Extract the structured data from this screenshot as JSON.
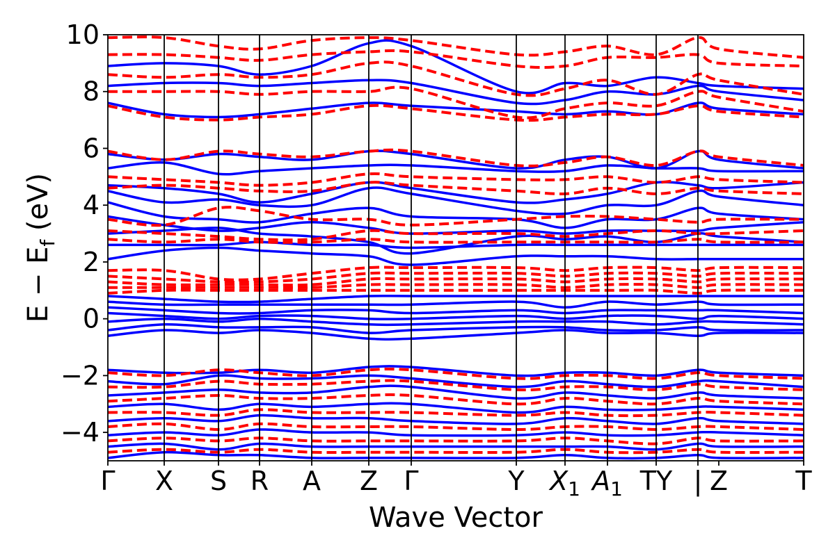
{
  "chart_data": {
    "type": "line",
    "xlabel": "Wave Vector",
    "ylabel": "E − E",
    "ylabel_subscript": "f",
    "ylabel_unit": " (eV)",
    "ylim": [
      -5,
      10
    ],
    "xlim": [
      0,
      1
    ],
    "yticks": [
      -4,
      -2,
      0,
      2,
      4,
      6,
      8,
      10
    ],
    "ytick_labels": [
      "−4",
      "−2",
      "0",
      "2",
      "4",
      "6",
      "8",
      "10"
    ],
    "kpoints": [
      {
        "label": "Γ",
        "x": 0.0,
        "vline": false
      },
      {
        "label": "X",
        "x": 0.081,
        "vline": true
      },
      {
        "label": "S",
        "x": 0.159,
        "vline": true
      },
      {
        "label": "R",
        "x": 0.218,
        "vline": true
      },
      {
        "label": "A",
        "x": 0.293,
        "vline": true
      },
      {
        "label": "Z",
        "x": 0.375,
        "vline": true
      },
      {
        "label": "Γ",
        "x": 0.436,
        "vline": true
      },
      {
        "label": "Y",
        "x": 0.587,
        "vline": true
      },
      {
        "label": "X",
        "label_sub": "1",
        "x": 0.657,
        "vline": true
      },
      {
        "label": "A",
        "label_sub": "1",
        "x": 0.718,
        "vline": true
      },
      {
        "label": "TY",
        "x": 0.788,
        "vline": true
      },
      {
        "label": "|",
        "x": 0.848,
        "vline": true
      },
      {
        "label": "Z",
        "x": 0.878,
        "vline": false
      },
      {
        "label": "T",
        "x": 1.0,
        "vline": false
      }
    ],
    "series": [
      {
        "color": "#0000ff",
        "style": "solid",
        "bands": [
          [
            8.9,
            9.0,
            8.9,
            8.6,
            8.9,
            9.7,
            9.6,
            8.0,
            8.3,
            8.2,
            8.5,
            8.3,
            8.2,
            8.1
          ],
          [
            8.2,
            8.3,
            8.3,
            8.2,
            8.3,
            8.4,
            8.3,
            7.6,
            7.7,
            8.0,
            7.9,
            8.2,
            8.0,
            7.7
          ],
          [
            7.6,
            7.2,
            7.1,
            7.2,
            7.4,
            7.6,
            7.5,
            7.3,
            7.2,
            7.3,
            7.2,
            7.6,
            7.4,
            7.2
          ],
          [
            5.8,
            5.6,
            5.8,
            5.7,
            5.6,
            5.9,
            5.8,
            5.3,
            5.6,
            5.7,
            5.3,
            5.9,
            5.6,
            5.3
          ],
          [
            5.3,
            5.5,
            5.1,
            5.2,
            5.3,
            5.4,
            5.4,
            5.2,
            5.2,
            5.4,
            5.3,
            5.3,
            5.2,
            5.2
          ],
          [
            4.7,
            4.6,
            4.4,
            4.1,
            4.4,
            4.8,
            4.6,
            4.1,
            4.2,
            4.4,
            4.8,
            4.7,
            4.6,
            4.8
          ],
          [
            4.5,
            4.1,
            4.2,
            4.0,
            4.0,
            4.6,
            4.4,
            3.8,
            3.7,
            4.0,
            4.0,
            4.5,
            4.3,
            4.0
          ],
          [
            4.1,
            3.6,
            3.5,
            3.4,
            3.7,
            3.9,
            3.6,
            3.5,
            3.2,
            3.5,
            3.5,
            3.9,
            3.7,
            3.5
          ],
          [
            3.6,
            3.3,
            3.1,
            3.2,
            3.4,
            3.2,
            3.0,
            3.1,
            3.0,
            3.1,
            3.1,
            3.1,
            3.2,
            3.4
          ],
          [
            3.0,
            3.1,
            3.2,
            3.0,
            2.9,
            2.7,
            2.3,
            2.9,
            2.8,
            2.9,
            2.7,
            3.0,
            2.9,
            2.7
          ],
          [
            2.6,
            2.6,
            2.6,
            2.7,
            2.6,
            2.6,
            2.5,
            2.6,
            2.6,
            2.6,
            2.6,
            2.6,
            2.6,
            2.6
          ],
          [
            2.1,
            2.4,
            2.5,
            2.4,
            2.3,
            2.2,
            1.9,
            2.2,
            2.2,
            2.2,
            2.1,
            2.1,
            2.1,
            2.1
          ],
          [
            0.8,
            0.7,
            0.6,
            0.6,
            0.7,
            0.8,
            0.8,
            0.8,
            0.8,
            0.8,
            0.8,
            0.8,
            0.8,
            0.8
          ],
          [
            0.6,
            0.5,
            0.5,
            0.5,
            0.5,
            0.5,
            0.5,
            0.6,
            0.4,
            0.6,
            0.5,
            0.6,
            0.5,
            0.5
          ],
          [
            0.4,
            0.3,
            0.2,
            0.2,
            0.3,
            0.3,
            0.2,
            0.3,
            0.2,
            0.3,
            0.3,
            0.3,
            0.3,
            0.2
          ],
          [
            0.2,
            0.1,
            0.0,
            0.1,
            0.1,
            0.0,
            0.0,
            0.1,
            0.0,
            0.1,
            0.1,
            0.0,
            0.1,
            0.0
          ],
          [
            -0.1,
            0.0,
            -0.1,
            0.0,
            -0.1,
            -0.2,
            -0.2,
            -0.1,
            -0.1,
            -0.1,
            -0.2,
            -0.1,
            -0.1,
            -0.2
          ],
          [
            -0.4,
            -0.2,
            -0.3,
            -0.3,
            -0.3,
            -0.5,
            -0.4,
            -0.3,
            -0.3,
            -0.4,
            -0.4,
            -0.3,
            -0.4,
            -0.4
          ],
          [
            -0.6,
            -0.4,
            -0.5,
            -0.4,
            -0.5,
            -0.7,
            -0.7,
            -0.5,
            -0.4,
            -0.5,
            -0.5,
            -0.6,
            -0.5,
            -0.5
          ],
          [
            -1.8,
            -1.9,
            -1.9,
            -1.8,
            -1.9,
            -1.7,
            -1.7,
            -2.0,
            -1.9,
            -1.9,
            -2.0,
            -1.8,
            -1.9,
            -2.0
          ],
          [
            -2.2,
            -2.3,
            -2.0,
            -2.1,
            -2.1,
            -2.0,
            -2.1,
            -2.4,
            -2.2,
            -2.3,
            -2.4,
            -2.2,
            -2.2,
            -2.4
          ],
          [
            -2.7,
            -2.6,
            -2.5,
            -2.6,
            -2.6,
            -2.4,
            -2.4,
            -2.8,
            -2.6,
            -2.7,
            -2.8,
            -2.6,
            -2.7,
            -2.8
          ],
          [
            -3.1,
            -3.0,
            -3.2,
            -3.0,
            -3.1,
            -3.0,
            -3.0,
            -3.3,
            -3.1,
            -3.2,
            -3.2,
            -3.1,
            -3.1,
            -3.2
          ],
          [
            -3.6,
            -3.5,
            -3.6,
            -3.4,
            -3.5,
            -3.5,
            -3.6,
            -3.7,
            -3.5,
            -3.6,
            -3.7,
            -3.5,
            -3.6,
            -3.7
          ],
          [
            -4.1,
            -4.0,
            -4.1,
            -3.9,
            -4.0,
            -4.0,
            -4.1,
            -4.1,
            -4.0,
            -4.1,
            -4.1,
            -4.0,
            -4.0,
            -4.1
          ],
          [
            -4.5,
            -4.4,
            -4.6,
            -4.4,
            -4.5,
            -4.5,
            -4.5,
            -4.5,
            -4.5,
            -4.5,
            -4.6,
            -4.4,
            -4.5,
            -4.5
          ],
          [
            -4.9,
            -4.7,
            -4.8,
            -4.8,
            -4.9,
            -4.9,
            -4.9,
            -4.9,
            -4.8,
            -4.9,
            -4.9,
            -4.8,
            -4.9,
            -4.9
          ]
        ]
      },
      {
        "color": "#ff0000",
        "style": "dashed",
        "bands": [
          [
            9.9,
            9.9,
            9.6,
            9.5,
            9.8,
            9.9,
            9.8,
            9.3,
            9.4,
            9.6,
            9.3,
            9.9,
            9.5,
            9.2
          ],
          [
            9.3,
            9.3,
            9.2,
            9.1,
            9.3,
            9.4,
            9.4,
            8.9,
            8.9,
            9.2,
            9.2,
            9.3,
            9.0,
            8.9
          ],
          [
            8.6,
            8.5,
            8.6,
            8.5,
            8.6,
            9.0,
            8.9,
            7.9,
            8.1,
            8.4,
            7.9,
            8.6,
            8.4,
            7.9
          ],
          [
            8.0,
            8.0,
            8.0,
            7.9,
            8.0,
            8.0,
            8.1,
            7.1,
            7.4,
            7.6,
            7.5,
            8.0,
            7.8,
            7.3
          ],
          [
            7.5,
            7.1,
            7.0,
            7.1,
            7.2,
            7.5,
            7.4,
            7.0,
            7.1,
            7.2,
            7.2,
            7.5,
            7.3,
            7.1
          ],
          [
            5.9,
            5.6,
            5.9,
            5.8,
            5.7,
            5.9,
            5.9,
            5.4,
            5.5,
            5.7,
            5.4,
            5.9,
            5.7,
            5.4
          ],
          [
            5.0,
            4.9,
            4.8,
            4.7,
            4.8,
            5.1,
            5.0,
            4.9,
            4.9,
            5.0,
            4.8,
            5.0,
            4.9,
            4.8
          ],
          [
            4.6,
            4.7,
            4.6,
            4.5,
            4.5,
            4.8,
            4.7,
            4.5,
            4.4,
            4.6,
            4.4,
            4.6,
            4.5,
            4.4
          ],
          [
            3.5,
            3.3,
            3.9,
            3.8,
            3.5,
            3.5,
            3.3,
            3.5,
            3.6,
            3.6,
            3.5,
            3.4,
            3.5,
            3.5
          ],
          [
            3.1,
            3.0,
            2.9,
            2.8,
            2.8,
            3.1,
            3.0,
            3.0,
            2.9,
            3.0,
            3.1,
            3.0,
            3.0,
            3.1
          ],
          [
            2.8,
            2.7,
            2.8,
            2.7,
            2.7,
            2.8,
            2.7,
            2.7,
            2.7,
            2.7,
            2.7,
            2.8,
            2.7,
            2.7
          ],
          [
            1.7,
            1.7,
            1.4,
            1.4,
            1.6,
            1.8,
            1.8,
            1.8,
            1.7,
            1.8,
            1.8,
            1.7,
            1.8,
            1.8
          ],
          [
            1.5,
            1.4,
            1.3,
            1.3,
            1.4,
            1.6,
            1.6,
            1.6,
            1.5,
            1.6,
            1.6,
            1.5,
            1.6,
            1.6
          ],
          [
            1.3,
            1.2,
            1.2,
            1.2,
            1.2,
            1.4,
            1.4,
            1.4,
            1.3,
            1.4,
            1.4,
            1.3,
            1.4,
            1.4
          ],
          [
            1.1,
            1.1,
            1.1,
            1.1,
            1.1,
            1.2,
            1.2,
            1.2,
            1.1,
            1.2,
            1.2,
            1.1,
            1.2,
            1.2
          ],
          [
            0.9,
            1.0,
            1.0,
            1.0,
            1.0,
            1.0,
            1.0,
            1.0,
            1.0,
            1.0,
            1.0,
            0.9,
            1.0,
            1.0
          ],
          [
            -1.9,
            -2.0,
            -1.8,
            -1.9,
            -2.0,
            -1.8,
            -1.8,
            -2.1,
            -2.0,
            -2.0,
            -2.1,
            -1.9,
            -2.0,
            -2.1
          ],
          [
            -2.4,
            -2.4,
            -2.2,
            -2.3,
            -2.3,
            -2.2,
            -2.2,
            -2.5,
            -2.4,
            -2.4,
            -2.5,
            -2.3,
            -2.4,
            -2.5
          ],
          [
            -2.9,
            -2.8,
            -2.7,
            -2.8,
            -2.8,
            -2.7,
            -2.7,
            -3.0,
            -2.8,
            -2.9,
            -3.0,
            -2.8,
            -2.9,
            -3.0
          ],
          [
            -3.3,
            -3.3,
            -3.4,
            -3.2,
            -3.3,
            -3.3,
            -3.3,
            -3.4,
            -3.3,
            -3.4,
            -3.4,
            -3.3,
            -3.3,
            -3.4
          ],
          [
            -3.8,
            -3.7,
            -3.9,
            -3.7,
            -3.8,
            -3.8,
            -3.8,
            -3.9,
            -3.8,
            -3.8,
            -3.9,
            -3.8,
            -3.8,
            -3.9
          ],
          [
            -4.3,
            -4.2,
            -4.3,
            -4.2,
            -4.3,
            -4.3,
            -4.3,
            -4.3,
            -4.2,
            -4.3,
            -4.4,
            -4.2,
            -4.3,
            -4.3
          ],
          [
            -4.7,
            -4.6,
            -4.7,
            -4.6,
            -4.7,
            -4.7,
            -4.7,
            -4.7,
            -4.6,
            -4.7,
            -4.7,
            -4.6,
            -4.7,
            -4.7
          ]
        ]
      }
    ]
  }
}
